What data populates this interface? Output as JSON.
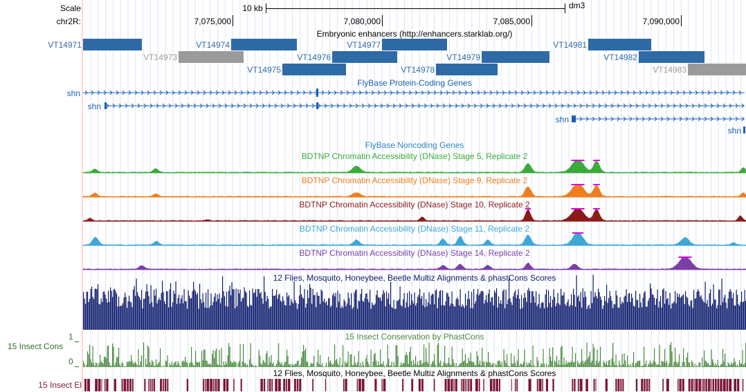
{
  "scale": {
    "label": "Scale",
    "bar_text": "10 kb",
    "assembly": "dm3"
  },
  "chromosome": {
    "label": "chr2R:",
    "ticks": [
      "7,075,000",
      "7,080,000",
      "7,085,000",
      "7,090,000"
    ]
  },
  "enhancers": {
    "title": "Embryonic enhancers (http://enhancers.starklab.org/)",
    "color_main": "#2e6aa6",
    "color_grey": "#9a9a9a",
    "items": [
      {
        "id": "VT14971",
        "grey": false
      },
      {
        "id": "VT14973",
        "grey": true
      },
      {
        "id": "VT14974",
        "grey": false
      },
      {
        "id": "VT14975",
        "grey": false
      },
      {
        "id": "VT14976",
        "grey": false
      },
      {
        "id": "VT14977",
        "grey": false
      },
      {
        "id": "VT14978",
        "grey": false
      },
      {
        "id": "VT14979",
        "grey": false
      },
      {
        "id": "VT14981",
        "grey": false
      },
      {
        "id": "VT14982",
        "grey": false
      },
      {
        "id": "VT14983",
        "grey": true
      }
    ]
  },
  "genes": {
    "title": "FlyBase Protein-Coding Genes",
    "color": "#1a5fb4",
    "transcripts": [
      "shn",
      "shn",
      "shn",
      "shn"
    ]
  },
  "noncoding": {
    "title": "FlyBase Noncoding Genes",
    "color": "#2e86c1"
  },
  "dnase": [
    {
      "title": "BDTNP Chromatin Accessibility (DNase) Stage 5, Replicate 2",
      "color": "#3aaa3a"
    },
    {
      "title": "BDTNP Chromatin Accessibility (DNase) Stage 9, Replicate 2",
      "color": "#f07d1e"
    },
    {
      "title": "BDTNP Chromatin Accessibility (DNase) Stage 10, Replicate 2",
      "color": "#8b1a1a"
    },
    {
      "title": "BDTNP Chromatin Accessibility (DNase) Stage 11, Replicate 2",
      "color": "#3ea7d8"
    },
    {
      "title": "BDTNP Chromatin Accessibility (DNase) Stage 14, Replicate 2",
      "color": "#7b3fa8"
    }
  ],
  "multiz": {
    "title": "12 Flies, Mosquito, Honeybee, Beetle Multiz Alignments & phastCons Scores",
    "color": "#0b1a6b"
  },
  "insect_cons": {
    "title": "15 Insect Conservation by PhastCons",
    "label": "15 Insect Cons",
    "y_max": "1",
    "y_min": "0",
    "color": "#4a8a3e"
  },
  "insect_el": {
    "title": "12 Flies, Mosquito, Honeybee, Beetle Multiz Alignments & phastCons Scores",
    "label": "15 Insect El",
    "color": "#7a1636"
  }
}
